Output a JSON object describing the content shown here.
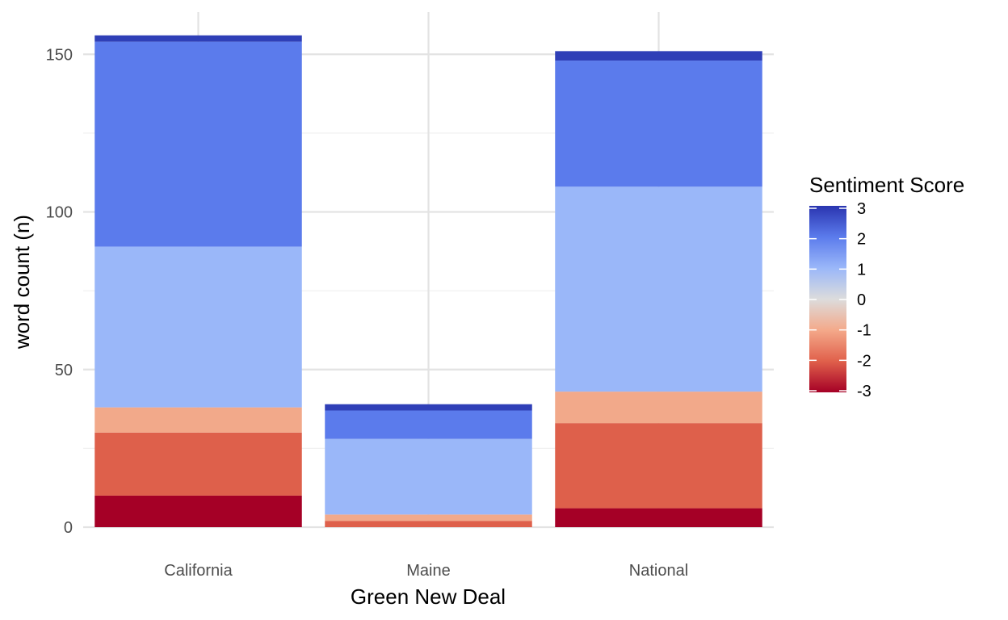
{
  "chart_data": {
    "type": "bar",
    "stacked": true,
    "xlabel": "Green New Deal",
    "ylabel": "word count (n)",
    "categories": [
      "California",
      "Maine",
      "National"
    ],
    "ylim": [
      0,
      160
    ],
    "yticks": [
      0,
      50,
      100,
      150
    ],
    "grid": true,
    "series": [
      {
        "score": -3,
        "color": "#a50026",
        "values": [
          10,
          0,
          6
        ]
      },
      {
        "score": -2,
        "color": "#de604b",
        "values": [
          20,
          2,
          27
        ]
      },
      {
        "score": -1,
        "color": "#f2a98a",
        "values": [
          8,
          2,
          10
        ]
      },
      {
        "score": 1,
        "color": "#9ab7f9",
        "values": [
          51,
          24,
          65
        ]
      },
      {
        "score": 2,
        "color": "#5b7bec",
        "values": [
          65,
          9,
          40
        ]
      },
      {
        "score": 3,
        "color": "#2f3fb7",
        "values": [
          2,
          2,
          3
        ]
      }
    ],
    "legend": {
      "title": "Sentiment Score",
      "placement": "right",
      "labels": [
        "3",
        "2",
        "1",
        "0",
        "-1",
        "-2",
        "-3"
      ],
      "range": [
        -3,
        3
      ],
      "gradient": [
        "#a50026",
        "#e0604b",
        "#f4a98a",
        "#dcdcdc",
        "#9ab7f9",
        "#5b7bec",
        "#2a35b0"
      ]
    }
  }
}
